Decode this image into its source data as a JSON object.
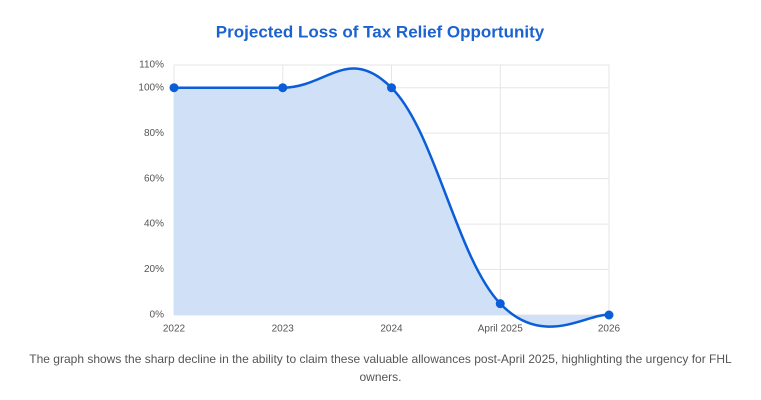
{
  "chart_data": {
    "type": "line",
    "title": "Projected Loss of Tax Relief Opportunity",
    "categories": [
      "2022",
      "2023",
      "2024",
      "April 2025",
      "2026"
    ],
    "series": [
      {
        "color": "#0b5ed7",
        "fill": "#cfe0f7",
        "values": [
          100,
          100,
          100,
          5,
          0
        ]
      }
    ],
    "ylim": [
      0,
      110
    ],
    "yticks": [
      {
        "value": 0,
        "label": "0%"
      },
      {
        "value": 20,
        "label": "20%"
      },
      {
        "value": 40,
        "label": "40%"
      },
      {
        "value": 60,
        "label": "60%"
      },
      {
        "value": 80,
        "label": "80%"
      },
      {
        "value": 100,
        "label": "100%"
      },
      {
        "value": 110,
        "label": "110%"
      }
    ],
    "grid": true,
    "caption": "The graph shows the sharp decline in the ability to claim these valuable allowances post-April 2025, highlighting the urgency for FHL owners."
  }
}
